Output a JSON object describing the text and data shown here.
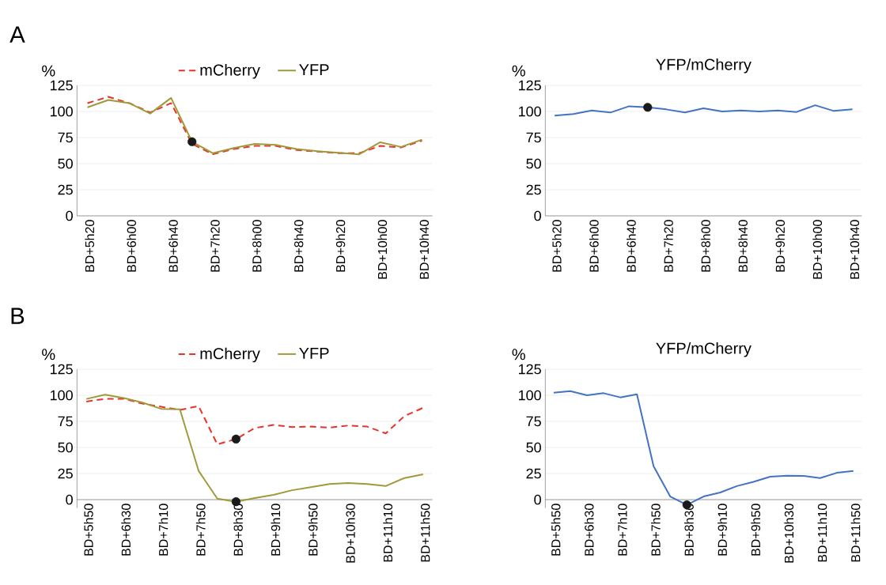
{
  "chart_data": [
    {
      "type": "line",
      "annotations": [
        "A"
      ],
      "ylabel": "%",
      "legend": "top",
      "grid": "y",
      "categories": [
        "BD+5h20",
        null,
        "BD+6h00",
        null,
        "BD+6h40",
        null,
        "BD+7h20",
        null,
        "BD+8h00",
        null,
        "BD+8h40",
        null,
        "BD+9h20",
        null,
        "BD+10h00",
        null,
        "BD+10h40"
      ],
      "ylim": [
        0,
        125
      ],
      "yticks": [
        0,
        25,
        50,
        75,
        100,
        125
      ],
      "series": [
        {
          "name": "mCherry",
          "color": "#e8322a",
          "line_style": "dashed",
          "values": [
            108,
            114,
            108,
            99,
            108,
            69,
            59,
            64,
            67,
            67,
            63,
            61.5,
            60,
            60,
            67,
            65.5,
            72
          ]
        },
        {
          "name": "YFP",
          "color": "#a09a3a",
          "line_style": "solid",
          "values": [
            104,
            111,
            108,
            98,
            113,
            71,
            60,
            65,
            69,
            68,
            64,
            62,
            60.5,
            59,
            70.5,
            66,
            73
          ]
        },
        {
          "type": "scatter",
          "marker": "circle",
          "color": "#1a1a1a",
          "values": [
            null,
            null,
            null,
            null,
            null,
            71,
            null,
            null,
            null,
            null,
            null,
            null,
            null,
            null,
            null,
            null,
            null
          ]
        }
      ]
    },
    {
      "type": "line",
      "title": "YFP/mCherry",
      "ylabel": "%",
      "grid": "y",
      "categories": [
        "BD+5h20",
        null,
        "BD+6h00",
        null,
        "BD+6h40",
        null,
        "BD+7h20",
        null,
        "BD+8h00",
        null,
        "BD+8h40",
        null,
        "BD+9h20",
        null,
        "BD+10h00",
        null,
        "BD+10h40"
      ],
      "ylim": [
        0,
        125
      ],
      "yticks": [
        0,
        25,
        50,
        75,
        100,
        125
      ],
      "series": [
        {
          "color": "#4472c4",
          "line_style": "solid",
          "values": [
            96,
            97.5,
            101,
            99,
            105,
            104,
            102,
            99,
            103,
            100,
            101,
            100,
            101,
            99.5,
            106,
            100.5,
            102
          ]
        },
        {
          "type": "scatter",
          "marker": "circle",
          "color": "#1a1a1a",
          "values": [
            null,
            null,
            null,
            null,
            null,
            104,
            null,
            null,
            null,
            null,
            null,
            null,
            null,
            null,
            null,
            null,
            null
          ]
        }
      ]
    },
    {
      "type": "line",
      "annotations": [
        "B"
      ],
      "ylabel": "%",
      "legend": "top",
      "grid": "y",
      "categories": [
        "BD+5h50",
        null,
        "BD+6h30",
        null,
        "BD+7h10",
        null,
        "BD+7h50",
        null,
        "BD+8h30",
        null,
        "BD+9h10",
        null,
        "BD+9h50",
        null,
        "BD+10h30",
        null,
        "BD+11h10",
        null,
        "BD+11h50"
      ],
      "ylim": [
        -8,
        125
      ],
      "yticks": [
        0,
        25,
        50,
        75,
        100,
        125
      ],
      "series": [
        {
          "name": "mCherry",
          "color": "#e8322a",
          "line_style": "dashed",
          "values": [
            94,
            96.5,
            96.7,
            92,
            89,
            86,
            89.6,
            53,
            58,
            68.6,
            71.6,
            69.6,
            70,
            69,
            71,
            70,
            63.5,
            80,
            88
          ]
        },
        {
          "name": "YFP",
          "color": "#a09a3a",
          "line_style": "solid",
          "values": [
            96.5,
            100.5,
            97.4,
            93,
            87,
            86.5,
            27.6,
            1,
            -2,
            1.5,
            4.5,
            9,
            12,
            15,
            16,
            15,
            13,
            20.7,
            24.3
          ]
        },
        {
          "type": "scatter",
          "marker": "circle",
          "color": "#1a1a1a",
          "values": [
            null,
            null,
            null,
            null,
            null,
            null,
            null,
            null,
            58,
            null,
            null,
            null,
            null,
            null,
            null,
            null,
            null,
            null,
            null
          ]
        },
        {
          "type": "scatter",
          "marker": "circle",
          "color": "#1a1a1a",
          "values": [
            null,
            null,
            null,
            null,
            null,
            null,
            null,
            null,
            -2,
            null,
            null,
            null,
            null,
            null,
            null,
            null,
            null,
            null,
            null
          ]
        }
      ]
    },
    {
      "type": "line",
      "title": "YFP/mCherry",
      "ylabel": "%",
      "grid": "y",
      "categories": [
        "BD+5h50",
        null,
        "BD+6h30",
        null,
        "BD+7h10",
        null,
        "BD+7h50",
        null,
        "BD+8h30",
        null,
        "BD+9h10",
        null,
        "BD+9h50",
        null,
        "BD+10h30",
        null,
        "BD+11h10",
        null,
        "BD+11h50"
      ],
      "ylim": [
        -8,
        125
      ],
      "yticks": [
        0,
        25,
        50,
        75,
        100,
        125
      ],
      "series": [
        {
          "color": "#4472c4",
          "line_style": "solid",
          "values": [
            102.5,
            104,
            100,
            102,
            98,
            101,
            32,
            3,
            -5,
            3,
            6.8,
            13,
            17,
            22,
            23,
            22.7,
            20.7,
            25.7,
            27.5
          ]
        },
        {
          "type": "scatter",
          "marker": "circle",
          "color": "#1a1a1a",
          "values": [
            null,
            null,
            null,
            null,
            null,
            null,
            null,
            null,
            -5,
            null,
            null,
            null,
            null,
            null,
            null,
            null,
            null,
            null,
            null
          ]
        }
      ]
    }
  ]
}
